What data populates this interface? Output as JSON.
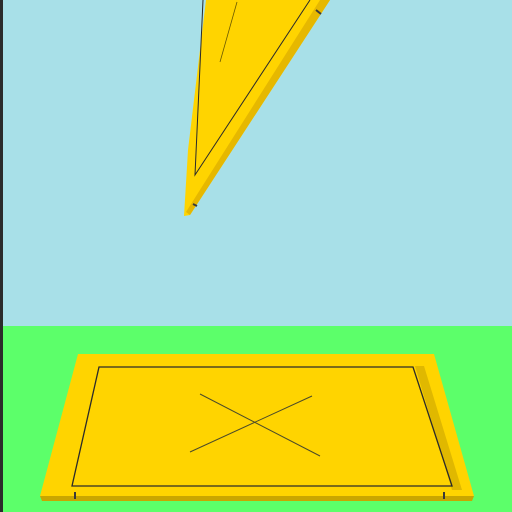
{
  "scene": {
    "sky_color": "#a8e0e8",
    "ground_color": "#5cff6a",
    "panel_color": "#ffd400",
    "panel_shadow_color": "#e6b800",
    "outline_color": "#2a2a2a",
    "left_edge_color": "#2b2b2b"
  },
  "objects": [
    {
      "name": "falling-yellow-panel",
      "kind": "thin-plate",
      "state": "falling"
    },
    {
      "name": "landing-target-pad",
      "kind": "plate",
      "marking": "x-mark"
    }
  ]
}
